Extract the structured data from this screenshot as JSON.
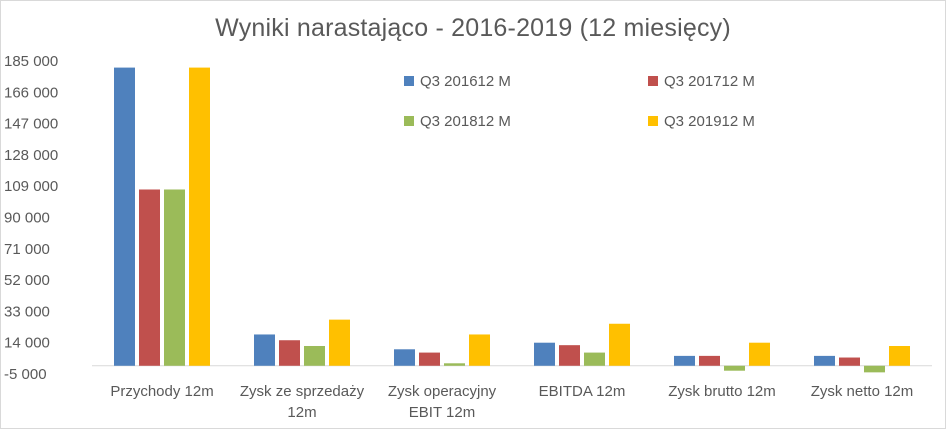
{
  "chart_data": {
    "type": "bar",
    "title": "Wyniki narastająco - 2016-2019 (12 miesięcy)",
    "xlabel": "",
    "ylabel": "",
    "ylim": [
      -5000,
      185000
    ],
    "y_ticks": [
      185000,
      166000,
      147000,
      128000,
      109000,
      90000,
      71000,
      52000,
      33000,
      14000,
      -5000
    ],
    "y_tick_labels": [
      "185 000",
      "166 000",
      "147 000",
      "128 000",
      "109 000",
      "90 000",
      "71 000",
      "52 000",
      "33 000",
      "14 000",
      "-5 000"
    ],
    "grid": false,
    "legend_placement": "top-right",
    "categories": [
      [
        "Przychody 12m"
      ],
      [
        "Zysk ze sprzedaży",
        "12m"
      ],
      [
        "Zysk operacyjny",
        "EBIT 12m"
      ],
      [
        "EBITDA 12m"
      ],
      [
        "Zysk brutto 12m"
      ],
      [
        "Zysk netto 12m"
      ]
    ],
    "series": [
      {
        "name": "Q3 201612 M",
        "color": "#4f81bd",
        "values": [
          181000,
          19000,
          10000,
          14000,
          6000,
          6000
        ]
      },
      {
        "name": "Q3 201712 M",
        "color": "#c0504d",
        "values": [
          107000,
          15500,
          8000,
          12500,
          6000,
          5000
        ]
      },
      {
        "name": "Q3 201812 M",
        "color": "#9bbb59",
        "values": [
          107000,
          12000,
          1500,
          8000,
          -3000,
          -4000
        ]
      },
      {
        "name": "Q3 201912 M",
        "color": "#ffc000",
        "values": [
          181000,
          28000,
          19000,
          25500,
          14000,
          12000
        ]
      }
    ]
  }
}
